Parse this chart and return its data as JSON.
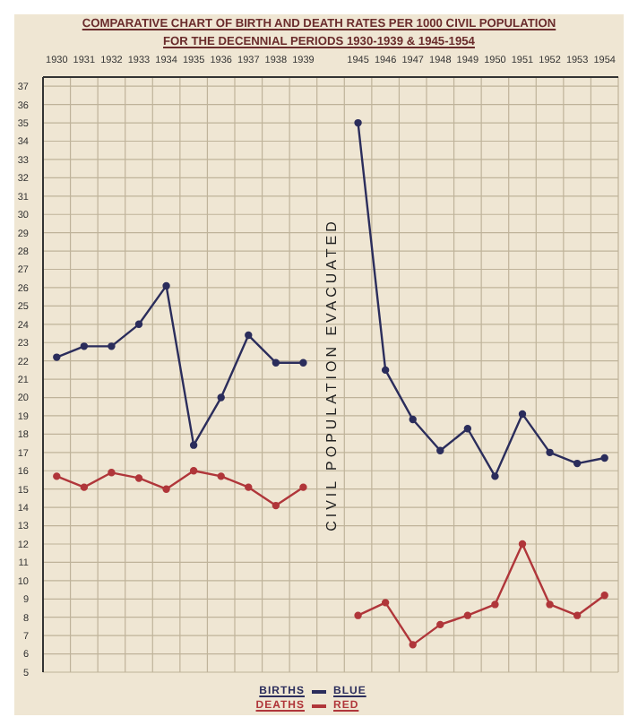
{
  "chart_data": {
    "type": "line",
    "title": "COMPARATIVE CHART OF BIRTH AND DEATH RATES PER 1000 CIVIL POPULATION",
    "subtitle": "FOR THE DECENNIAL PERIODS 1930-1939 & 1945-1954",
    "categories": [
      "1930",
      "1931",
      "1932",
      "1933",
      "1934",
      "1935",
      "1936",
      "1937",
      "1938",
      "1939",
      null,
      "1945",
      "1946",
      "1947",
      "1948",
      "1949",
      "1950",
      "1951",
      "1952",
      "1953",
      "1954"
    ],
    "series": [
      {
        "name": "BIRTHS",
        "color": "#2b2d5c",
        "values": [
          22.2,
          22.8,
          22.8,
          24.0,
          26.1,
          17.4,
          20.0,
          23.4,
          21.9,
          21.9,
          null,
          35.0,
          21.5,
          18.8,
          17.1,
          18.3,
          15.7,
          19.1,
          17.0,
          16.4,
          16.7
        ]
      },
      {
        "name": "DEATHS",
        "color": "#b0363a",
        "values": [
          15.7,
          15.1,
          15.9,
          15.6,
          15.0,
          16.0,
          15.7,
          15.1,
          14.1,
          15.1,
          null,
          8.1,
          8.8,
          6.5,
          7.6,
          8.1,
          8.7,
          12.0,
          8.7,
          8.1,
          9.2
        ]
      }
    ],
    "ylim": [
      5,
      37.5
    ],
    "yticks": [
      5,
      6,
      7,
      8,
      9,
      10,
      11,
      12,
      13,
      14,
      15,
      16,
      17,
      18,
      19,
      20,
      21,
      22,
      23,
      24,
      25,
      26,
      27,
      28,
      29,
      30,
      31,
      32,
      33,
      34,
      35,
      36,
      37
    ],
    "grid": true,
    "marker": "circle",
    "line_style": "solid",
    "legend": "bottom",
    "annotations": [
      {
        "text": "CIVIL POPULATION EVACUATED"
      },
      "BLUE",
      "RED"
    ]
  }
}
